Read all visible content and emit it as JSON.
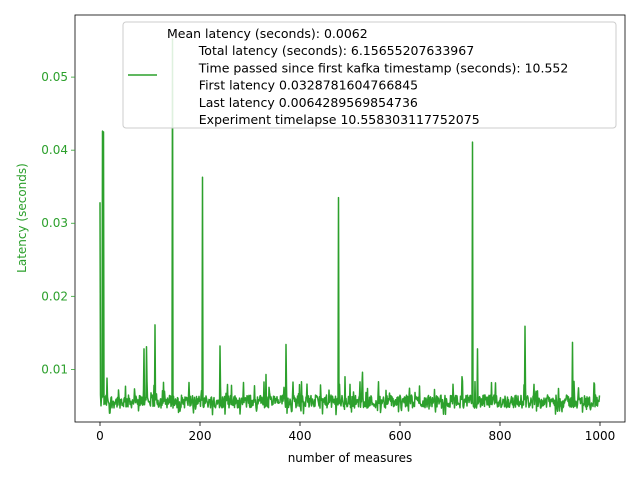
{
  "chart_data": {
    "type": "line",
    "xlabel": "number of measures",
    "ylabel": "Latency (seconds)",
    "xlim": [
      -50,
      1050
    ],
    "ylim": [
      0.0028,
      0.0585
    ],
    "x_ticks": [
      0,
      200,
      400,
      600,
      800,
      1000
    ],
    "y_ticks": [
      0.01,
      0.02,
      0.03,
      0.04,
      0.05
    ],
    "x_tick_labels": [
      "0",
      "200",
      "400",
      "600",
      "800",
      "1000"
    ],
    "y_tick_labels": [
      "0.01",
      "0.02",
      "0.03",
      "0.04",
      "0.05"
    ],
    "grid": false,
    "legend_position": "upper right",
    "series": [
      {
        "name": "Mean latency (seconds): 0.0062\n        Total latency (seconds): 6.15655207633967\n        Time passed since first kafka timestamp (seconds): 10.552\n        First latency 0.0328781604766845\n        Last latency 0.0064289569854736\n        Experiment timelapse 10.558303117752075",
        "color": "#2ca02c",
        "points_count": 1000,
        "first_value": 0.0328781604766845,
        "last_value": 0.0064289569854736,
        "mean_value": 0.0062,
        "baseline_range": [
          0.0045,
          0.007
        ],
        "spikes": [
          {
            "x": 0,
            "y": 0.0329
          },
          {
            "x": 5,
            "y": 0.0426
          },
          {
            "x": 7,
            "y": 0.0425
          },
          {
            "x": 14,
            "y": 0.0088
          },
          {
            "x": 88,
            "y": 0.0128
          },
          {
            "x": 93,
            "y": 0.0131
          },
          {
            "x": 110,
            "y": 0.0161
          },
          {
            "x": 145,
            "y": 0.0552
          },
          {
            "x": 205,
            "y": 0.0363
          },
          {
            "x": 240,
            "y": 0.0132
          },
          {
            "x": 332,
            "y": 0.0093
          },
          {
            "x": 372,
            "y": 0.0134
          },
          {
            "x": 477,
            "y": 0.0335
          },
          {
            "x": 490,
            "y": 0.009
          },
          {
            "x": 525,
            "y": 0.0096
          },
          {
            "x": 724,
            "y": 0.009
          },
          {
            "x": 745,
            "y": 0.0411
          },
          {
            "x": 755,
            "y": 0.0128
          },
          {
            "x": 850,
            "y": 0.0159
          },
          {
            "x": 945,
            "y": 0.0137
          }
        ]
      }
    ]
  },
  "colors": {
    "accent": "#2ca02c",
    "axes": "#000000",
    "legend_border": "#cccccc"
  }
}
